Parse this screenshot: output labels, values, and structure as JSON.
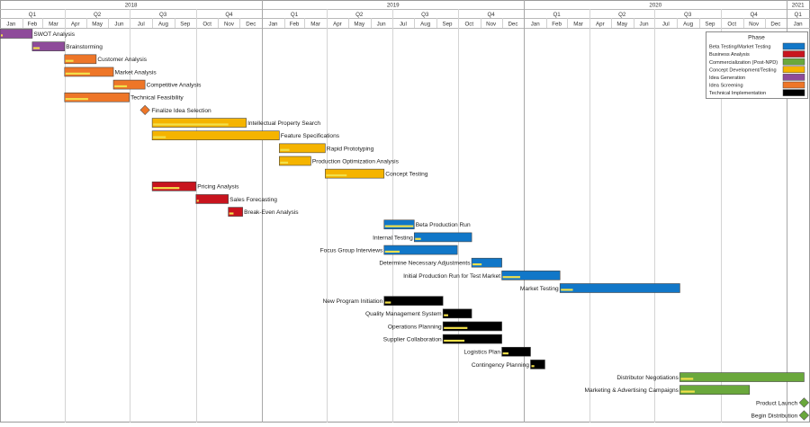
{
  "years": [
    {
      "label": "2018",
      "start": "2018-01-01",
      "end": "2019-01-01"
    },
    {
      "label": "2019",
      "start": "2019-01-01",
      "end": "2020-01-01"
    },
    {
      "label": "2020",
      "start": "2020-01-01",
      "end": "2021-01-01"
    },
    {
      "label": "2021",
      "start": "2021-01-01",
      "end": "2021-02-01"
    }
  ],
  "quarters": [
    {
      "label": "Q1",
      "start": "2018-01-01",
      "end": "2018-04-01"
    },
    {
      "label": "Q2",
      "start": "2018-04-01",
      "end": "2018-07-01"
    },
    {
      "label": "Q3",
      "start": "2018-07-01",
      "end": "2018-10-01"
    },
    {
      "label": "Q4",
      "start": "2018-10-01",
      "end": "2019-01-01"
    },
    {
      "label": "Q1",
      "start": "2019-01-01",
      "end": "2019-04-01"
    },
    {
      "label": "Q2",
      "start": "2019-04-01",
      "end": "2019-07-01"
    },
    {
      "label": "Q3",
      "start": "2019-07-01",
      "end": "2019-10-01"
    },
    {
      "label": "Q4",
      "start": "2019-10-01",
      "end": "2020-01-01"
    },
    {
      "label": "Q1",
      "start": "2020-01-01",
      "end": "2020-04-01"
    },
    {
      "label": "Q2",
      "start": "2020-04-01",
      "end": "2020-07-01"
    },
    {
      "label": "Q3",
      "start": "2020-07-01",
      "end": "2020-10-01"
    },
    {
      "label": "Q4",
      "start": "2020-10-01",
      "end": "2021-01-01"
    },
    {
      "label": "Q1",
      "start": "2021-01-01",
      "end": "2021-02-01"
    }
  ],
  "months": [
    {
      "label": "Jan",
      "start": "2018-01-01",
      "end": "2018-02-01"
    },
    {
      "label": "Feb",
      "start": "2018-02-01",
      "end": "2018-03-01"
    },
    {
      "label": "Mar",
      "start": "2018-03-01",
      "end": "2018-04-01"
    },
    {
      "label": "Apr",
      "start": "2018-04-01",
      "end": "2018-05-01"
    },
    {
      "label": "May",
      "start": "2018-05-01",
      "end": "2018-06-01"
    },
    {
      "label": "Jun",
      "start": "2018-06-01",
      "end": "2018-07-01"
    },
    {
      "label": "Jul",
      "start": "2018-07-01",
      "end": "2018-08-01"
    },
    {
      "label": "Aug",
      "start": "2018-08-01",
      "end": "2018-09-01"
    },
    {
      "label": "Sep",
      "start": "2018-09-01",
      "end": "2018-10-01"
    },
    {
      "label": "Oct",
      "start": "2018-10-01",
      "end": "2018-11-01"
    },
    {
      "label": "Nov",
      "start": "2018-11-01",
      "end": "2018-12-01"
    },
    {
      "label": "Dec",
      "start": "2018-12-01",
      "end": "2019-01-01"
    },
    {
      "label": "Jan",
      "start": "2019-01-01",
      "end": "2019-02-01"
    },
    {
      "label": "Feb",
      "start": "2019-02-01",
      "end": "2019-03-01"
    },
    {
      "label": "Mar",
      "start": "2019-03-01",
      "end": "2019-04-01"
    },
    {
      "label": "Apr",
      "start": "2019-04-01",
      "end": "2019-05-01"
    },
    {
      "label": "May",
      "start": "2019-05-01",
      "end": "2019-06-01"
    },
    {
      "label": "Jun",
      "start": "2019-06-01",
      "end": "2019-07-01"
    },
    {
      "label": "Jul",
      "start": "2019-07-01",
      "end": "2019-08-01"
    },
    {
      "label": "Aug",
      "start": "2019-08-01",
      "end": "2019-09-01"
    },
    {
      "label": "Sep",
      "start": "2019-09-01",
      "end": "2019-10-01"
    },
    {
      "label": "Oct",
      "start": "2019-10-01",
      "end": "2019-11-01"
    },
    {
      "label": "Nov",
      "start": "2019-11-01",
      "end": "2019-12-01"
    },
    {
      "label": "Dec",
      "start": "2019-12-01",
      "end": "2020-01-01"
    },
    {
      "label": "Jan",
      "start": "2020-01-01",
      "end": "2020-02-01"
    },
    {
      "label": "Feb",
      "start": "2020-02-01",
      "end": "2020-03-01"
    },
    {
      "label": "Mar",
      "start": "2020-03-01",
      "end": "2020-04-01"
    },
    {
      "label": "Apr",
      "start": "2020-04-01",
      "end": "2020-05-01"
    },
    {
      "label": "May",
      "start": "2020-05-01",
      "end": "2020-06-01"
    },
    {
      "label": "Jun",
      "start": "2020-06-01",
      "end": "2020-07-01"
    },
    {
      "label": "Jul",
      "start": "2020-07-01",
      "end": "2020-08-01"
    },
    {
      "label": "Aug",
      "start": "2020-08-01",
      "end": "2020-09-01"
    },
    {
      "label": "Sep",
      "start": "2020-09-01",
      "end": "2020-10-01"
    },
    {
      "label": "Oct",
      "start": "2020-10-01",
      "end": "2020-11-01"
    },
    {
      "label": "Nov",
      "start": "2020-11-01",
      "end": "2020-12-01"
    },
    {
      "label": "Dec",
      "start": "2020-12-01",
      "end": "2021-01-01"
    },
    {
      "label": "Jan",
      "start": "2021-01-01",
      "end": "2021-02-01"
    }
  ],
  "legend": {
    "title": "Phase",
    "items": [
      {
        "label": "Beta Testing/Market Testing",
        "color": "#1177c8"
      },
      {
        "label": "Business Analysis",
        "color": "#c8141e"
      },
      {
        "label": "Commercialization (Post-NPD)",
        "color": "#6aa83c"
      },
      {
        "label": "Concept Development/Testing",
        "color": "#f5b400"
      },
      {
        "label": "Idea Generation",
        "color": "#8e4b9a"
      },
      {
        "label": "Idea Screening",
        "color": "#ee7628"
      },
      {
        "label": "Technical Implementation",
        "color": "#000000"
      }
    ]
  },
  "progress_color": "#f2e04a",
  "tasks": [
    {
      "name": "SWOT Analysis",
      "phase": "Idea Generation",
      "start": "2018-01-01",
      "end": "2018-02-15",
      "progress": 0.05,
      "label_side": "right"
    },
    {
      "name": "Brainstorming",
      "phase": "Idea Generation",
      "start": "2018-02-15",
      "end": "2018-04-01",
      "progress": 0.2,
      "label_side": "right"
    },
    {
      "name": "Customer Analysis",
      "phase": "Idea Screening",
      "start": "2018-04-01",
      "end": "2018-05-15",
      "progress": 0.25,
      "label_side": "right"
    },
    {
      "name": "Market Analysis",
      "phase": "Idea Screening",
      "start": "2018-04-01",
      "end": "2018-06-08",
      "progress": 0.5,
      "label_side": "right"
    },
    {
      "name": "Competitive Analysis",
      "phase": "Idea Screening",
      "start": "2018-06-08",
      "end": "2018-07-22",
      "progress": 0.4,
      "label_side": "right"
    },
    {
      "name": "Technical Feasibility",
      "phase": "Idea Screening",
      "start": "2018-04-01",
      "end": "2018-06-30",
      "progress": 0.35,
      "label_side": "right"
    },
    {
      "name": "Finalize Idea Selection",
      "phase": "Idea Screening",
      "milestone": true,
      "start": "2018-07-22",
      "label_side": "right"
    },
    {
      "name": "Intellectual Property Search",
      "phase": "Concept Development/Testing",
      "start": "2018-08-01",
      "end": "2018-12-10",
      "progress": 0.8,
      "label_side": "right"
    },
    {
      "name": "Feature Specifications",
      "phase": "Concept Development/Testing",
      "start": "2018-08-01",
      "end": "2019-01-25",
      "progress": 0.1,
      "label_side": "right"
    },
    {
      "name": "Rapid Prototyping",
      "phase": "Concept Development/Testing",
      "start": "2019-01-25",
      "end": "2019-03-30",
      "progress": 0.2,
      "label_side": "right"
    },
    {
      "name": "Production Optimization Analysis",
      "phase": "Concept Development/Testing",
      "start": "2019-01-25",
      "end": "2019-03-10",
      "progress": 0.25,
      "label_side": "right"
    },
    {
      "name": "Concept Testing",
      "phase": "Concept Development/Testing",
      "start": "2019-03-30",
      "end": "2019-06-20",
      "progress": 0.35,
      "label_side": "right"
    },
    {
      "name": "Pricing Analysis",
      "phase": "Business Analysis",
      "start": "2018-08-01",
      "end": "2018-10-01",
      "progress": 0.6,
      "label_side": "right"
    },
    {
      "name": "Sales Forecasting",
      "phase": "Business Analysis",
      "start": "2018-10-01",
      "end": "2018-11-15",
      "progress": 0.05,
      "label_side": "right"
    },
    {
      "name": "Break-Even Analysis",
      "phase": "Business Analysis",
      "start": "2018-11-15",
      "end": "2018-12-05",
      "progress": 0.3,
      "label_side": "right"
    },
    {
      "name": "Beta Production Run",
      "phase": "Beta Testing/Market Testing",
      "start": "2019-06-20",
      "end": "2019-08-01",
      "progress": 1.0,
      "label_side": "right"
    },
    {
      "name": "Internal Testing",
      "phase": "Beta Testing/Market Testing",
      "start": "2019-08-01",
      "end": "2019-10-20",
      "progress": 0.1,
      "label_side": "left"
    },
    {
      "name": "Focus Group Interviews",
      "phase": "Beta Testing/Market Testing",
      "start": "2019-06-20",
      "end": "2019-09-30",
      "progress": 0.2,
      "label_side": "left"
    },
    {
      "name": "Determine Necessary Adjustments",
      "phase": "Beta Testing/Market Testing",
      "start": "2019-10-20",
      "end": "2019-12-01",
      "progress": 0.3,
      "label_side": "left"
    },
    {
      "name": "Initial Production Run for Test Market",
      "phase": "Beta Testing/Market Testing",
      "start": "2019-12-01",
      "end": "2020-02-20",
      "progress": 0.3,
      "label_side": "left"
    },
    {
      "name": "Market Testing",
      "phase": "Beta Testing/Market Testing",
      "start": "2020-02-20",
      "end": "2020-08-05",
      "progress": 0.1,
      "label_side": "left"
    },
    {
      "name": "New Program Initiation",
      "phase": "Technical Implementation",
      "start": "2019-06-20",
      "end": "2019-09-10",
      "progress": 0.1,
      "label_side": "left"
    },
    {
      "name": "Quality Management System",
      "phase": "Technical Implementation",
      "start": "2019-09-10",
      "end": "2019-10-20",
      "progress": 0.15,
      "label_side": "left"
    },
    {
      "name": "Operations Planning",
      "phase": "Technical Implementation",
      "start": "2019-09-10",
      "end": "2019-12-01",
      "progress": 0.4,
      "label_side": "left"
    },
    {
      "name": "Supplier Collaboration",
      "phase": "Technical Implementation",
      "start": "2019-09-10",
      "end": "2019-12-01",
      "progress": 0.35,
      "label_side": "left"
    },
    {
      "name": "Logistics Plan",
      "phase": "Technical Implementation",
      "start": "2019-12-01",
      "end": "2020-01-10",
      "progress": 0.2,
      "label_side": "left"
    },
    {
      "name": "Contingency Planning",
      "phase": "Technical Implementation",
      "start": "2020-01-10",
      "end": "2020-01-30",
      "progress": 0.2,
      "label_side": "left"
    },
    {
      "name": "Distributor Negotiations",
      "phase": "Commercialization (Post-NPD)",
      "start": "2020-08-05",
      "end": "2021-01-25",
      "progress": 0.1,
      "label_side": "left"
    },
    {
      "name": "Marketing & Advertising Campaigns",
      "phase": "Commercialization (Post-NPD)",
      "start": "2020-08-05",
      "end": "2020-11-10",
      "progress": 0.2,
      "label_side": "left"
    },
    {
      "name": "Product Launch",
      "phase": "Commercialization (Post-NPD)",
      "milestone": true,
      "start": "2021-01-25",
      "label_side": "left"
    },
    {
      "name": "Begin Distribution",
      "phase": "Commercialization (Post-NPD)",
      "milestone": true,
      "start": "2021-01-25",
      "label_side": "left"
    }
  ]
}
